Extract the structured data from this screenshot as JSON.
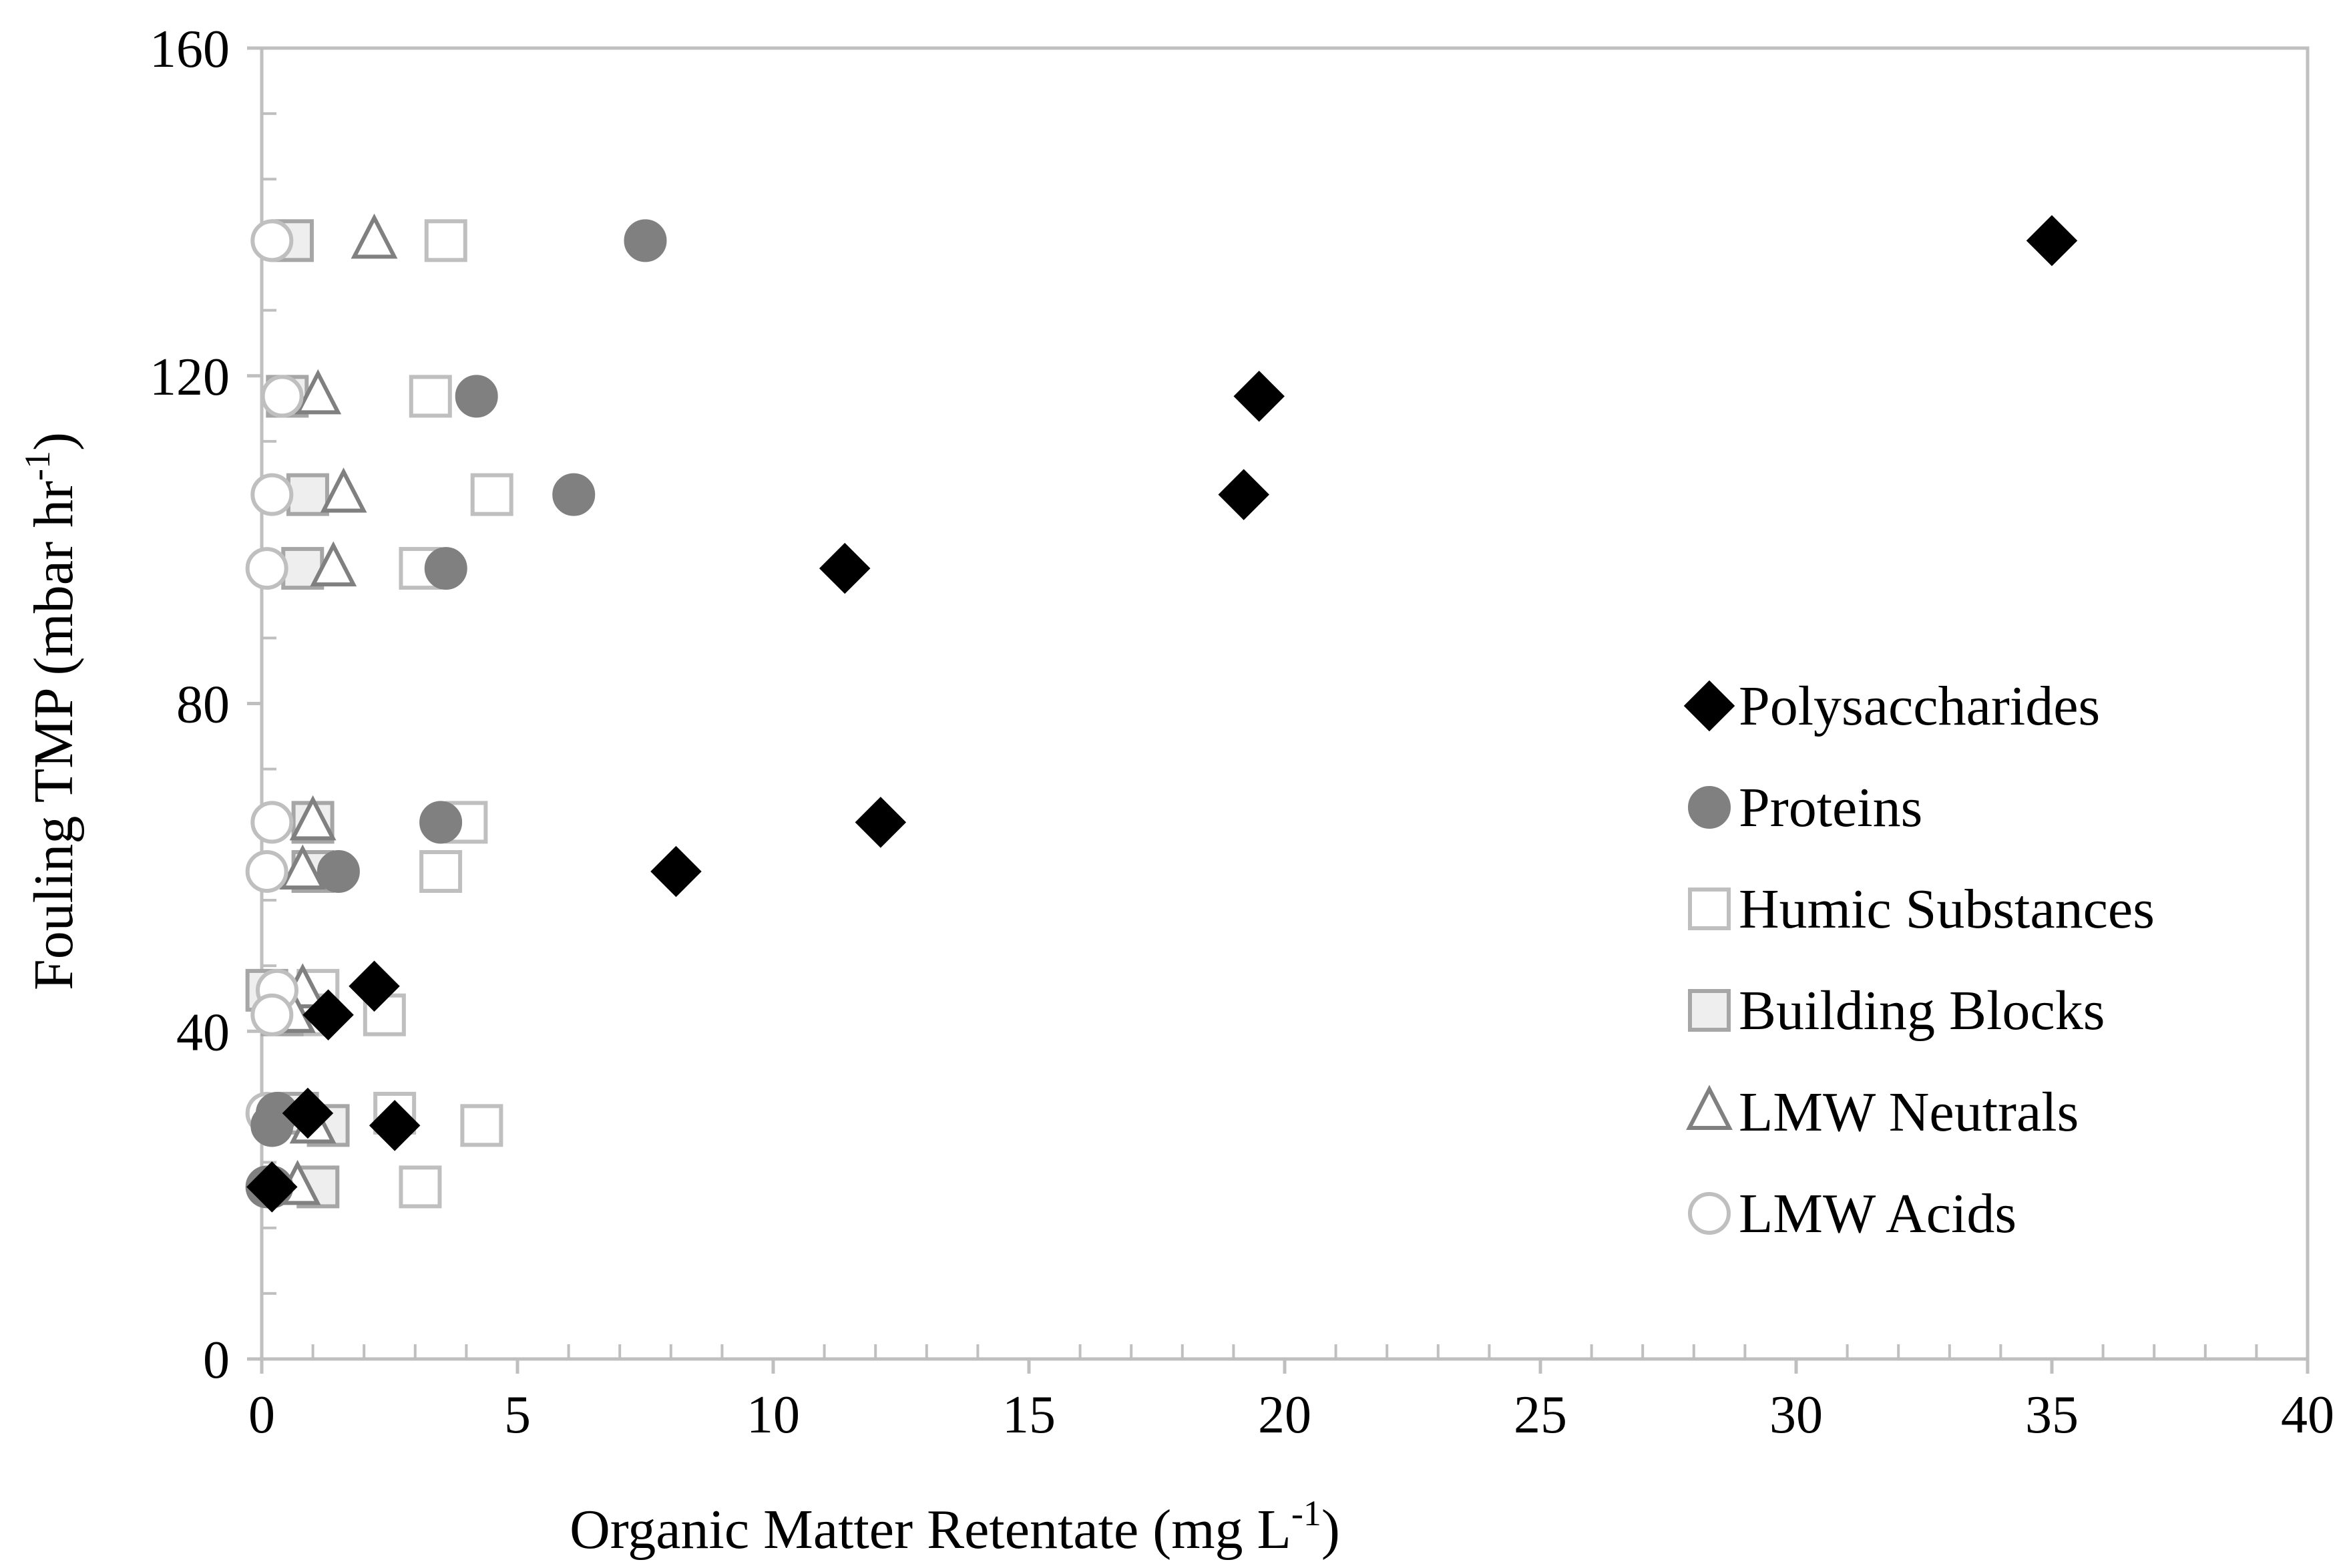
{
  "chart_data": {
    "type": "scatter",
    "xlabel": "Organic Matter Retentate (mg L",
    "xlabel_sup": "-1",
    "xlabel_end": ")",
    "ylabel": "Fouling TMP (mbar hr",
    "ylabel_sup": "-1",
    "ylabel_end": ")",
    "xlim": [
      0,
      40
    ],
    "ylim": [
      0,
      160
    ],
    "xticks": [
      0,
      5,
      10,
      15,
      20,
      25,
      30,
      35,
      40
    ],
    "yticks": [
      0,
      40,
      80,
      120,
      160
    ],
    "xtick_labels": [
      "0",
      "5",
      "10",
      "15",
      "20",
      "25",
      "30",
      "35",
      "40"
    ],
    "ytick_labels": [
      "0",
      "40",
      "80",
      "120",
      "160"
    ],
    "legend_position": "right",
    "series": [
      {
        "name": "Polysaccharides",
        "marker": "diamond",
        "fill": "#000000",
        "stroke": "#000000",
        "points": [
          [
            35.0,
            136.5
          ],
          [
            19.5,
            117.5
          ],
          [
            19.2,
            105.5
          ],
          [
            11.4,
            96.5
          ],
          [
            12.1,
            65.5
          ],
          [
            8.1,
            59.5
          ],
          [
            2.2,
            45.5
          ],
          [
            1.3,
            42.0
          ],
          [
            2.6,
            28.5
          ],
          [
            0.9,
            30.0
          ],
          [
            0.2,
            21.0
          ]
        ]
      },
      {
        "name": "Proteins",
        "marker": "circle",
        "fill": "#808080",
        "stroke": "#808080",
        "points": [
          [
            7.5,
            136.5
          ],
          [
            4.2,
            117.5
          ],
          [
            6.1,
            105.5
          ],
          [
            3.6,
            96.5
          ],
          [
            3.5,
            65.5
          ],
          [
            1.5,
            59.5
          ],
          [
            0.3,
            30.0
          ],
          [
            0.2,
            28.5
          ],
          [
            0.1,
            21.0
          ],
          [
            0.2,
            21.0
          ]
        ]
      },
      {
        "name": "Humic Substances",
        "marker": "square",
        "fill": "#ffffff",
        "stroke": "#bfbfbf",
        "points": [
          [
            3.6,
            136.5
          ],
          [
            3.3,
            117.5
          ],
          [
            4.5,
            105.5
          ],
          [
            3.1,
            96.5
          ],
          [
            4.0,
            65.5
          ],
          [
            3.5,
            59.5
          ],
          [
            2.4,
            42.0
          ],
          [
            1.1,
            45.0
          ],
          [
            2.6,
            30.0
          ],
          [
            4.3,
            28.5
          ],
          [
            3.1,
            21.0
          ],
          [
            0.8,
            42.0
          ]
        ]
      },
      {
        "name": "Building Blocks",
        "marker": "square",
        "fill": "#eeeeee",
        "stroke": "#a6a6a6",
        "points": [
          [
            0.6,
            136.5
          ],
          [
            0.5,
            117.5
          ],
          [
            0.9,
            105.5
          ],
          [
            0.8,
            96.5
          ],
          [
            1.0,
            65.5
          ],
          [
            1.0,
            59.5
          ],
          [
            0.1,
            45.0
          ],
          [
            0.4,
            42.0
          ],
          [
            1.3,
            28.5
          ],
          [
            1.1,
            21.0
          ],
          [
            0.7,
            30.0
          ]
        ]
      },
      {
        "name": "LMW Neutrals",
        "marker": "triangle",
        "fill": "#ffffff",
        "stroke": "#808080",
        "points": [
          [
            2.2,
            136.5
          ],
          [
            1.1,
            117.5
          ],
          [
            1.6,
            105.5
          ],
          [
            1.4,
            96.5
          ],
          [
            1.0,
            65.5
          ],
          [
            0.8,
            59.5
          ],
          [
            0.8,
            45.0
          ],
          [
            0.6,
            42.0
          ],
          [
            1.0,
            28.5
          ],
          [
            0.7,
            21.0
          ]
        ]
      },
      {
        "name": "LMW Acids",
        "marker": "circle",
        "fill": "#ffffff",
        "stroke": "#bfbfbf",
        "points": [
          [
            0.2,
            136.5
          ],
          [
            0.4,
            117.5
          ],
          [
            0.2,
            105.5
          ],
          [
            0.1,
            96.5
          ],
          [
            0.2,
            65.5
          ],
          [
            0.1,
            59.5
          ],
          [
            0.3,
            45.0
          ],
          [
            0.2,
            42.0
          ],
          [
            0.1,
            30.0
          ],
          [
            0.2,
            28.5
          ]
        ]
      }
    ]
  }
}
